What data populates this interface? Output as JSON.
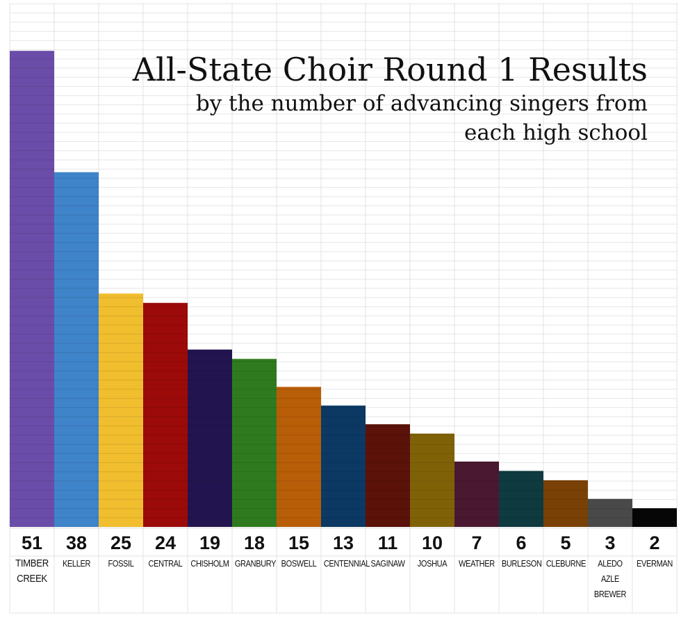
{
  "chart_data": {
    "type": "bar",
    "title": "All-State Choir Round 1 Results",
    "subtitle": "by the number of advancing singers from each high school",
    "categories": [
      [
        "TIMBER",
        "CREEK"
      ],
      [
        "KELLER"
      ],
      [
        "FOSSIL"
      ],
      [
        "CENTRAL"
      ],
      [
        "CHISHOLM"
      ],
      [
        "GRANBURY"
      ],
      [
        "BOSWELL"
      ],
      [
        "CENTENNIAL"
      ],
      [
        "SAGINAW"
      ],
      [
        "JOSHUA"
      ],
      [
        "WEATHER"
      ],
      [
        "BURLESON"
      ],
      [
        "CLEBURNE"
      ],
      [
        "ALEDO",
        "AZLE",
        "BREWER"
      ],
      [
        "EVERMAN"
      ]
    ],
    "values": [
      51,
      38,
      25,
      24,
      19,
      18,
      15,
      13,
      11,
      10,
      7,
      6,
      5,
      3,
      2
    ],
    "colors": [
      "#6a4da8",
      "#3f83c8",
      "#f0be2e",
      "#9c0a0a",
      "#22154f",
      "#2f7a1f",
      "#b85d08",
      "#0b3964",
      "#5a1209",
      "#7f6208",
      "#4a1830",
      "#0f3a3f",
      "#7a4106",
      "#494949",
      "#060606"
    ],
    "ylim": [
      0,
      56
    ],
    "grid": true,
    "legend": "none"
  }
}
